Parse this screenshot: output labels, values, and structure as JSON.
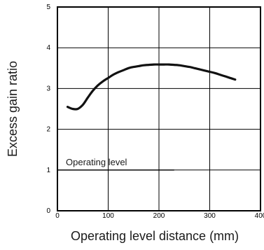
{
  "chart_data": {
    "type": "line",
    "title": "",
    "xlabel": "Operating level distance (mm)",
    "ylabel": "Excess gain ratio",
    "xlim": [
      0,
      400
    ],
    "ylim": [
      0,
      5
    ],
    "x_ticks": [
      0,
      100,
      200,
      300,
      400
    ],
    "y_ticks": [
      0,
      1,
      2,
      3,
      4,
      5
    ],
    "x_tick_labels": [
      "0",
      "100",
      "200",
      "300",
      "400"
    ],
    "y_tick_labels": [
      "0",
      "1",
      "2",
      "3",
      "4",
      "5"
    ],
    "grid": true,
    "legend": "none",
    "series": [
      {
        "color": "#111111",
        "x": [
          20,
          30,
          40,
          50,
          60,
          70,
          80,
          90,
          100,
          110,
          120,
          130,
          140,
          150,
          160,
          170,
          180,
          190,
          200,
          210,
          220,
          230,
          240,
          250,
          260,
          270,
          280,
          290,
          300,
          310,
          320,
          330,
          340,
          350
        ],
        "y": [
          2.55,
          2.5,
          2.5,
          2.6,
          2.78,
          2.95,
          3.08,
          3.18,
          3.26,
          3.34,
          3.4,
          3.45,
          3.5,
          3.53,
          3.55,
          3.57,
          3.58,
          3.59,
          3.59,
          3.59,
          3.59,
          3.58,
          3.57,
          3.55,
          3.53,
          3.5,
          3.47,
          3.44,
          3.41,
          3.38,
          3.34,
          3.3,
          3.26,
          3.22
        ]
      }
    ],
    "annotations": [
      {
        "text": "Operating level",
        "y": 1,
        "x_start": 0,
        "x_end": 230
      }
    ]
  }
}
